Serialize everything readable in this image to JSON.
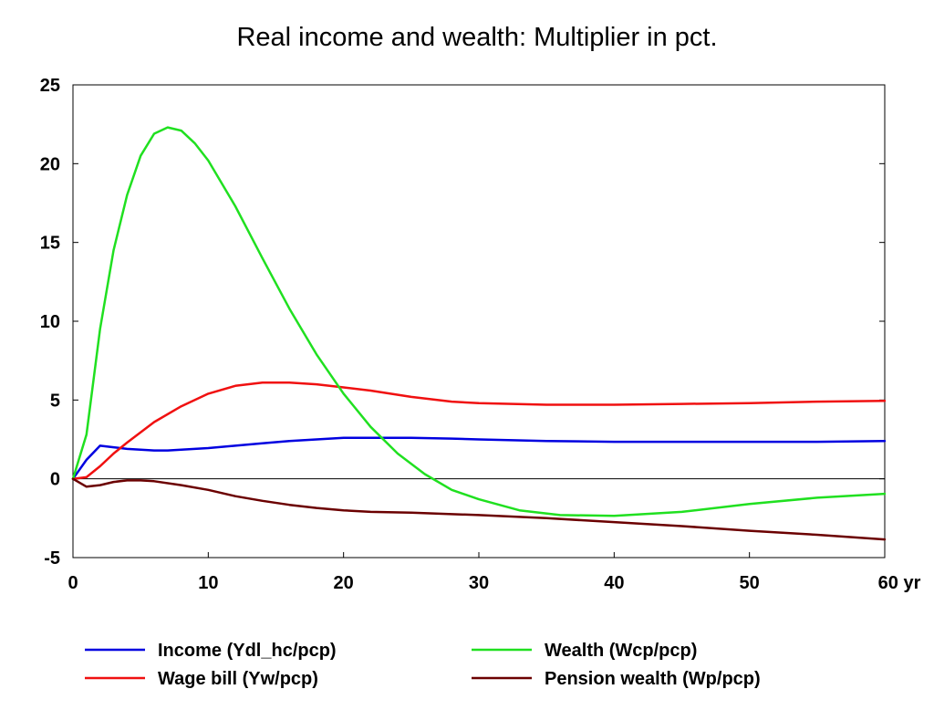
{
  "chart_data": {
    "type": "line",
    "title": "Real income and wealth: Multiplier in pct.",
    "xlabel": "",
    "ylabel": "",
    "xlim": [
      0,
      60
    ],
    "ylim": [
      -5,
      25
    ],
    "x_ticks": [
      "0",
      "10",
      "20",
      "30",
      "40",
      "50",
      "60 yr"
    ],
    "y_ticks": [
      "25",
      "20",
      "15",
      "10",
      "5",
      "0",
      "-5"
    ],
    "grid": false,
    "legend_position": "bottom",
    "series": [
      {
        "name": "Income (Ydl_hc/pcp)",
        "color": "#0000e0",
        "x": [
          0,
          1,
          2,
          3,
          4,
          5,
          6,
          7,
          8,
          10,
          12,
          14,
          16,
          18,
          20,
          22,
          25,
          28,
          30,
          35,
          40,
          45,
          50,
          55,
          60
        ],
        "y": [
          0,
          1.2,
          2.1,
          2.0,
          1.9,
          1.85,
          1.8,
          1.8,
          1.85,
          1.95,
          2.1,
          2.25,
          2.4,
          2.5,
          2.6,
          2.6,
          2.6,
          2.55,
          2.5,
          2.4,
          2.35,
          2.35,
          2.35,
          2.35,
          2.4
        ]
      },
      {
        "name": "Wage bill (Yw/pcp)",
        "color": "#f01010",
        "x": [
          0,
          1,
          2,
          3,
          4,
          6,
          8,
          10,
          12,
          14,
          16,
          18,
          20,
          22,
          25,
          28,
          30,
          35,
          40,
          45,
          50,
          55,
          60
        ],
        "y": [
          0,
          0.1,
          0.8,
          1.6,
          2.3,
          3.6,
          4.6,
          5.4,
          5.9,
          6.1,
          6.1,
          6.0,
          5.8,
          5.6,
          5.2,
          4.9,
          4.8,
          4.7,
          4.7,
          4.75,
          4.8,
          4.9,
          4.95
        ]
      },
      {
        "name": "Wealth (Wcp/pcp)",
        "color": "#20e020",
        "x": [
          0,
          1,
          2,
          3,
          4,
          5,
          6,
          7,
          8,
          9,
          10,
          12,
          14,
          16,
          18,
          20,
          22,
          24,
          26,
          28,
          30,
          33,
          36,
          40,
          45,
          50,
          55,
          60
        ],
        "y": [
          0,
          2.8,
          9.5,
          14.5,
          18.0,
          20.5,
          21.9,
          22.3,
          22.1,
          21.3,
          20.2,
          17.3,
          14.0,
          10.8,
          7.9,
          5.4,
          3.3,
          1.6,
          0.3,
          -0.7,
          -1.3,
          -2.0,
          -2.3,
          -2.35,
          -2.1,
          -1.6,
          -1.2,
          -0.95
        ]
      },
      {
        "name": "Pension wealth (Wp/pcp)",
        "color": "#6b0000",
        "x": [
          0,
          1,
          2,
          3,
          4,
          5,
          6,
          8,
          10,
          12,
          14,
          16,
          18,
          20,
          22,
          25,
          30,
          35,
          40,
          45,
          50,
          55,
          60
        ],
        "y": [
          0,
          -0.5,
          -0.4,
          -0.2,
          -0.1,
          -0.1,
          -0.15,
          -0.4,
          -0.7,
          -1.1,
          -1.4,
          -1.65,
          -1.85,
          -2.0,
          -2.1,
          -2.15,
          -2.3,
          -2.5,
          -2.75,
          -3.0,
          -3.3,
          -3.55,
          -3.85
        ]
      }
    ]
  }
}
